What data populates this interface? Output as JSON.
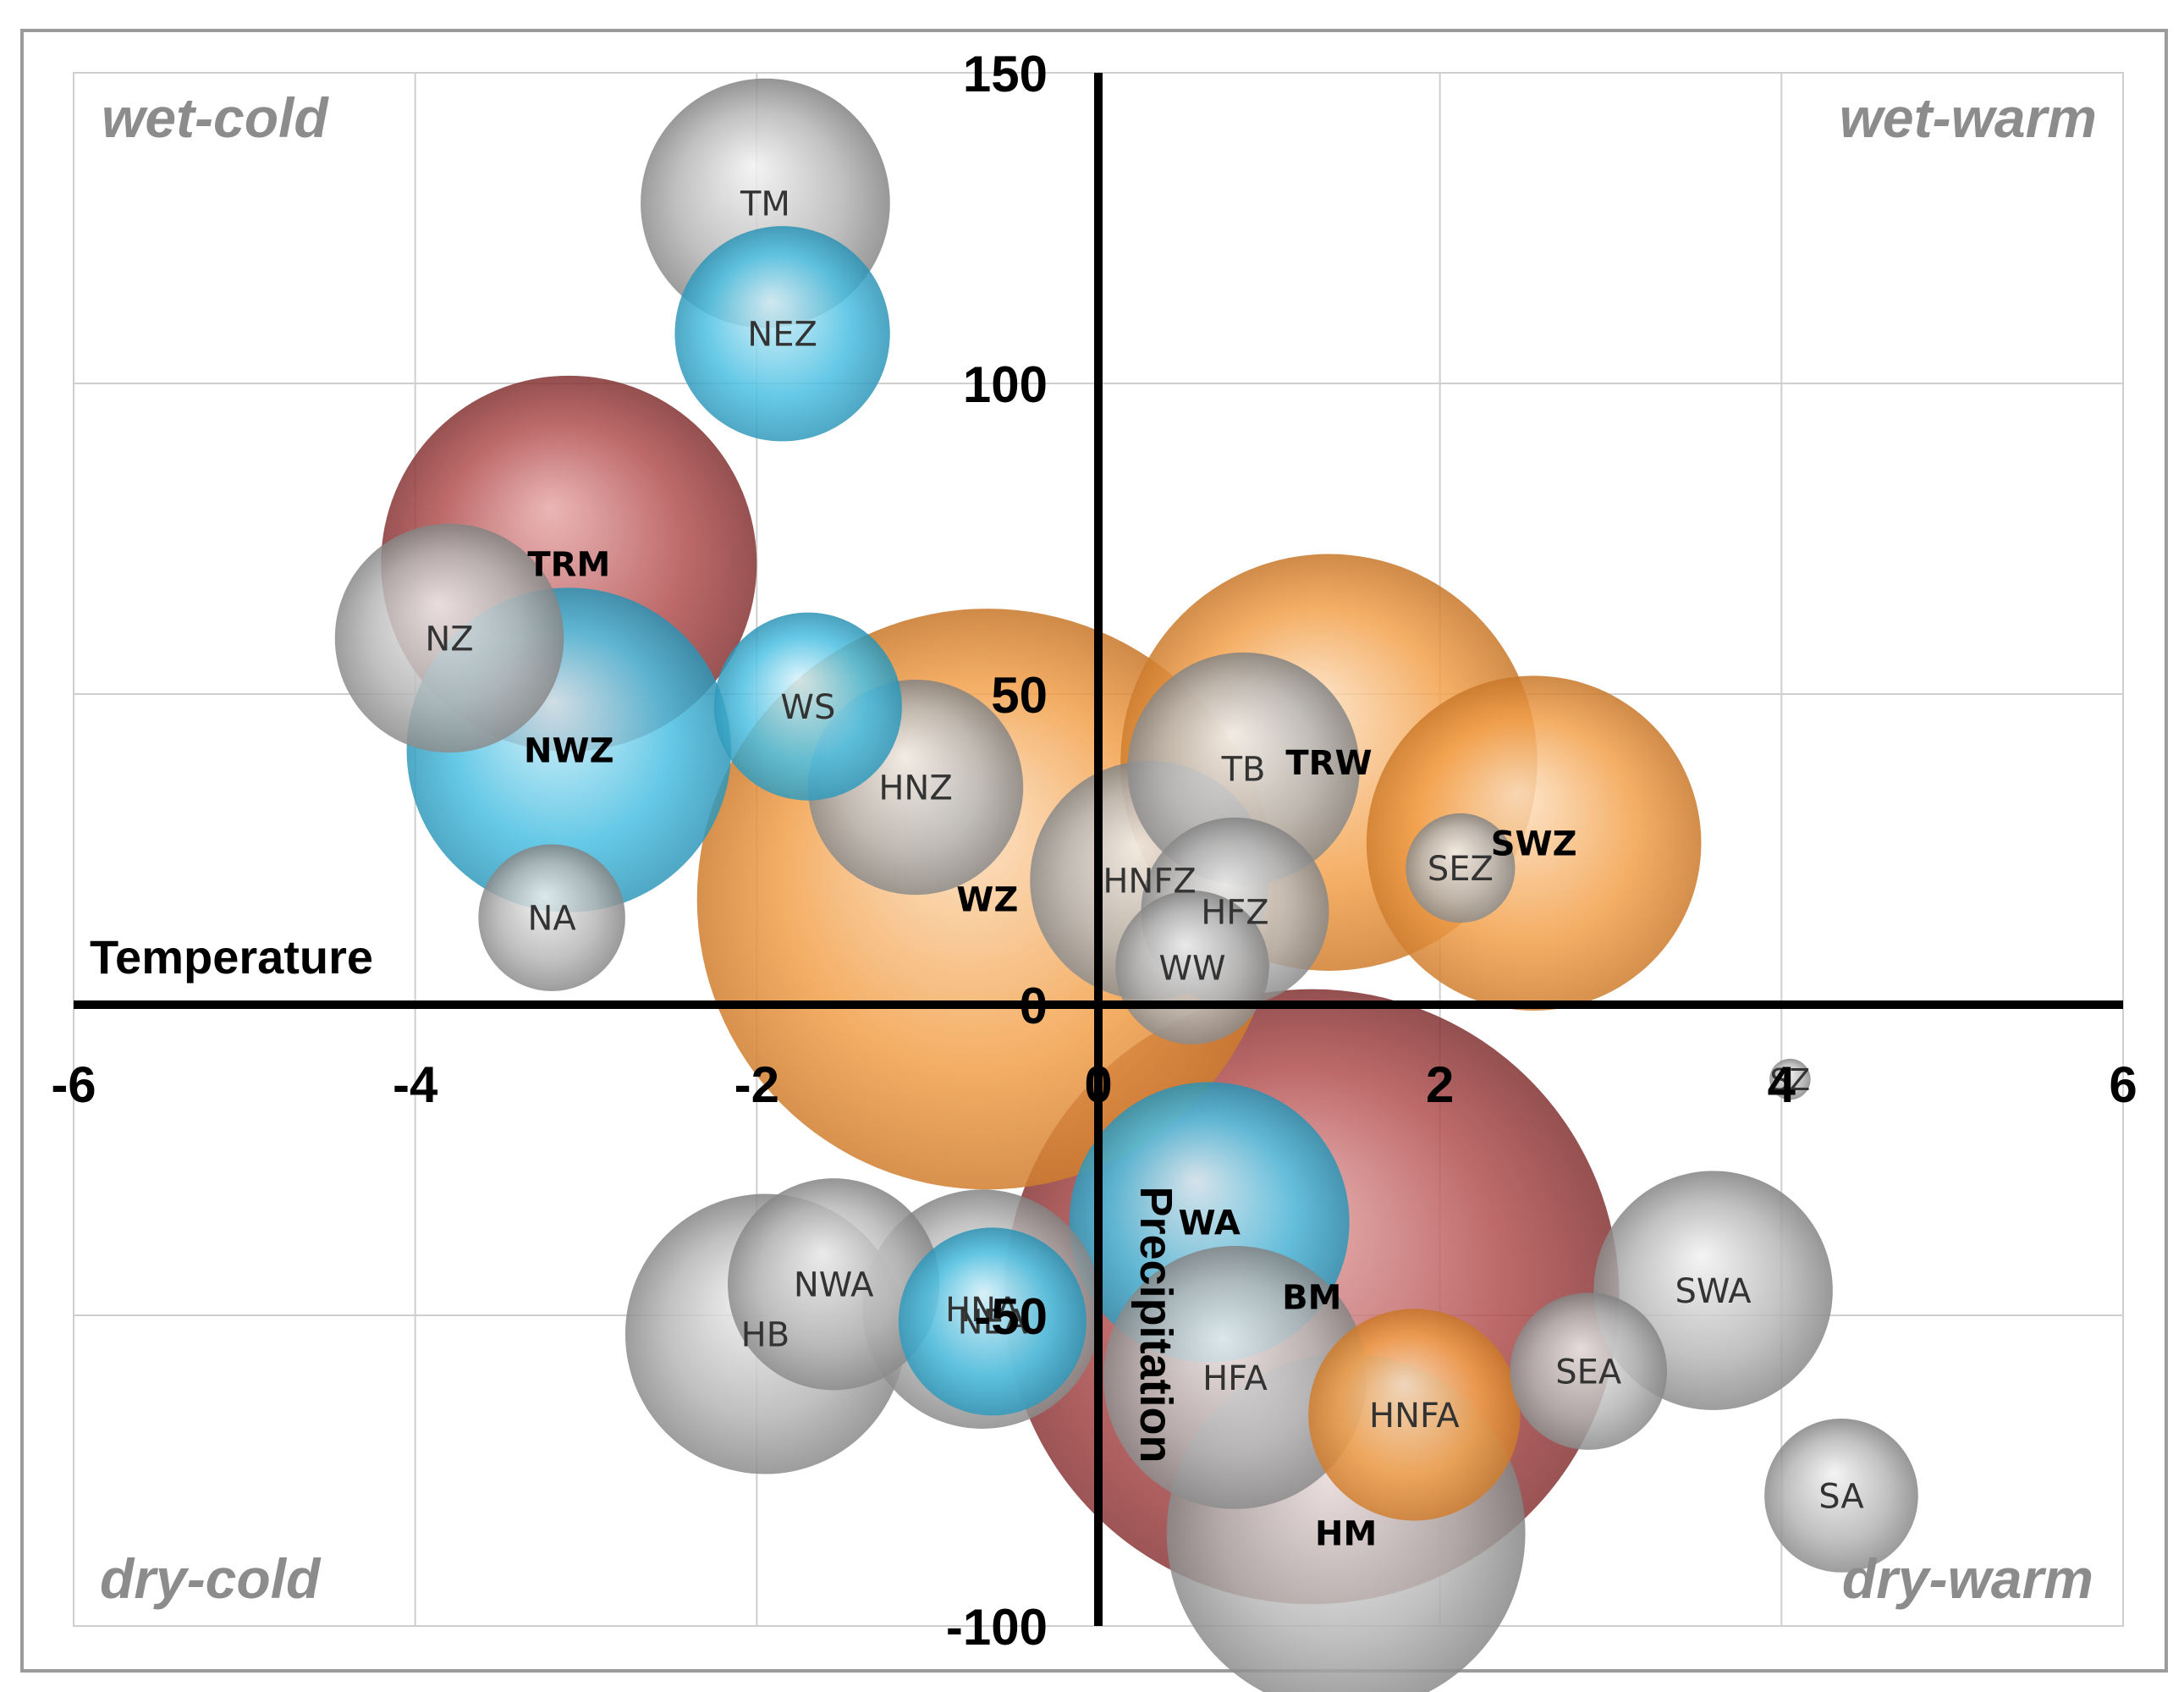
{
  "chart_data": {
    "type": "bubble",
    "title": "",
    "xlabel": "Temperature",
    "ylabel": "Precipitation",
    "xlim": [
      -6,
      6
    ],
    "ylim": [
      -100,
      150
    ],
    "x_ticks": [
      -6,
      -4,
      -2,
      0,
      2,
      4,
      6
    ],
    "x_tick_labels": [
      "-6",
      "-4",
      "-2",
      "0",
      "2",
      "4",
      "6"
    ],
    "y_ticks": [
      150,
      100,
      50,
      0,
      -50,
      -100
    ],
    "y_tick_labels": [
      "150",
      "100",
      "50",
      "0",
      "-50",
      "-100"
    ],
    "grid": true,
    "quadrants": {
      "top_left": "wet-cold",
      "top_right": "wet-warm",
      "bottom_left": "dry-cold",
      "bottom_right": "dry-warm"
    },
    "colors": {
      "grey": "#9a9a9a",
      "blue": "#3fb4d6",
      "orange": "#f09a3e",
      "red": "#b44d4d"
    },
    "bubbles": [
      {
        "label": "WZ",
        "x": -0.65,
        "y": 17,
        "r": 1.7,
        "color": "orange",
        "bold": true
      },
      {
        "label": "BM",
        "x": 1.25,
        "y": -47,
        "r": 1.8,
        "color": "red",
        "bold": true
      },
      {
        "label": "TRW",
        "x": 1.35,
        "y": 39,
        "r": 1.22,
        "color": "orange",
        "bold": true
      },
      {
        "label": "TRM",
        "x": -3.1,
        "y": 71,
        "r": 1.1,
        "color": "red",
        "bold": true
      },
      {
        "label": "SWZ",
        "x": 2.55,
        "y": 26,
        "r": 0.98,
        "color": "orange",
        "bold": true
      },
      {
        "label": "NWZ",
        "x": -3.1,
        "y": 41,
        "r": 0.95,
        "color": "blue",
        "bold": true
      },
      {
        "label": "HM",
        "x": 1.45,
        "y": -85,
        "r": 1.05,
        "color": "grey",
        "bold": true
      },
      {
        "label": "WA",
        "x": 0.65,
        "y": -35,
        "r": 0.82,
        "color": "blue",
        "bold": true
      },
      {
        "label": "HFA",
        "x": 0.8,
        "y": -60,
        "r": 0.77,
        "color": "grey",
        "bold": false
      },
      {
        "label": "HB",
        "x": -1.95,
        "y": -53,
        "r": 0.82,
        "color": "grey",
        "bold": false
      },
      {
        "label": "HNA",
        "x": -0.68,
        "y": -49,
        "r": 0.7,
        "color": "grey",
        "bold": false
      },
      {
        "label": "TM",
        "x": -1.95,
        "y": 129,
        "r": 0.73,
        "color": "grey",
        "bold": false
      },
      {
        "label": "HNFZ",
        "x": 0.3,
        "y": 20,
        "r": 0.7,
        "color": "grey",
        "bold": false
      },
      {
        "label": "TB",
        "x": 0.85,
        "y": 38,
        "r": 0.68,
        "color": "grey",
        "bold": false
      },
      {
        "label": "NZ",
        "x": -3.8,
        "y": 59,
        "r": 0.67,
        "color": "grey",
        "bold": false
      },
      {
        "label": "SWA",
        "x": 3.6,
        "y": -46,
        "r": 0.7,
        "color": "grey",
        "bold": false
      },
      {
        "label": "NWA",
        "x": -1.55,
        "y": -45,
        "r": 0.62,
        "color": "grey",
        "bold": false
      },
      {
        "label": "HNZ",
        "x": -1.07,
        "y": 35,
        "r": 0.63,
        "color": "grey",
        "bold": false
      },
      {
        "label": "NEZ",
        "x": -1.85,
        "y": 108,
        "r": 0.63,
        "color": "blue",
        "bold": false
      },
      {
        "label": "HNFA",
        "x": 1.85,
        "y": -66,
        "r": 0.62,
        "color": "orange",
        "bold": false
      },
      {
        "label": "NEA",
        "x": -0.62,
        "y": -51,
        "r": 0.55,
        "color": "blue",
        "bold": false
      },
      {
        "label": "HFZ",
        "x": 0.8,
        "y": 15,
        "r": 0.55,
        "color": "grey",
        "bold": false
      },
      {
        "label": "WS",
        "x": -1.7,
        "y": 48,
        "r": 0.55,
        "color": "blue",
        "bold": false
      },
      {
        "label": "WW",
        "x": 0.55,
        "y": 6,
        "r": 0.45,
        "color": "grey",
        "bold": false
      },
      {
        "label": "SEA",
        "x": 2.87,
        "y": -59,
        "r": 0.46,
        "color": "grey",
        "bold": false
      },
      {
        "label": "SA",
        "x": 4.35,
        "y": -79,
        "r": 0.45,
        "color": "grey",
        "bold": false
      },
      {
        "label": "NA",
        "x": -3.2,
        "y": 14,
        "r": 0.43,
        "color": "grey",
        "bold": false
      },
      {
        "label": "SEZ",
        "x": 2.12,
        "y": 22,
        "r": 0.32,
        "color": "grey",
        "bold": false
      },
      {
        "label": "SZ",
        "x": 4.05,
        "y": -12,
        "r": 0.12,
        "color": "grey",
        "bold": false
      }
    ]
  }
}
